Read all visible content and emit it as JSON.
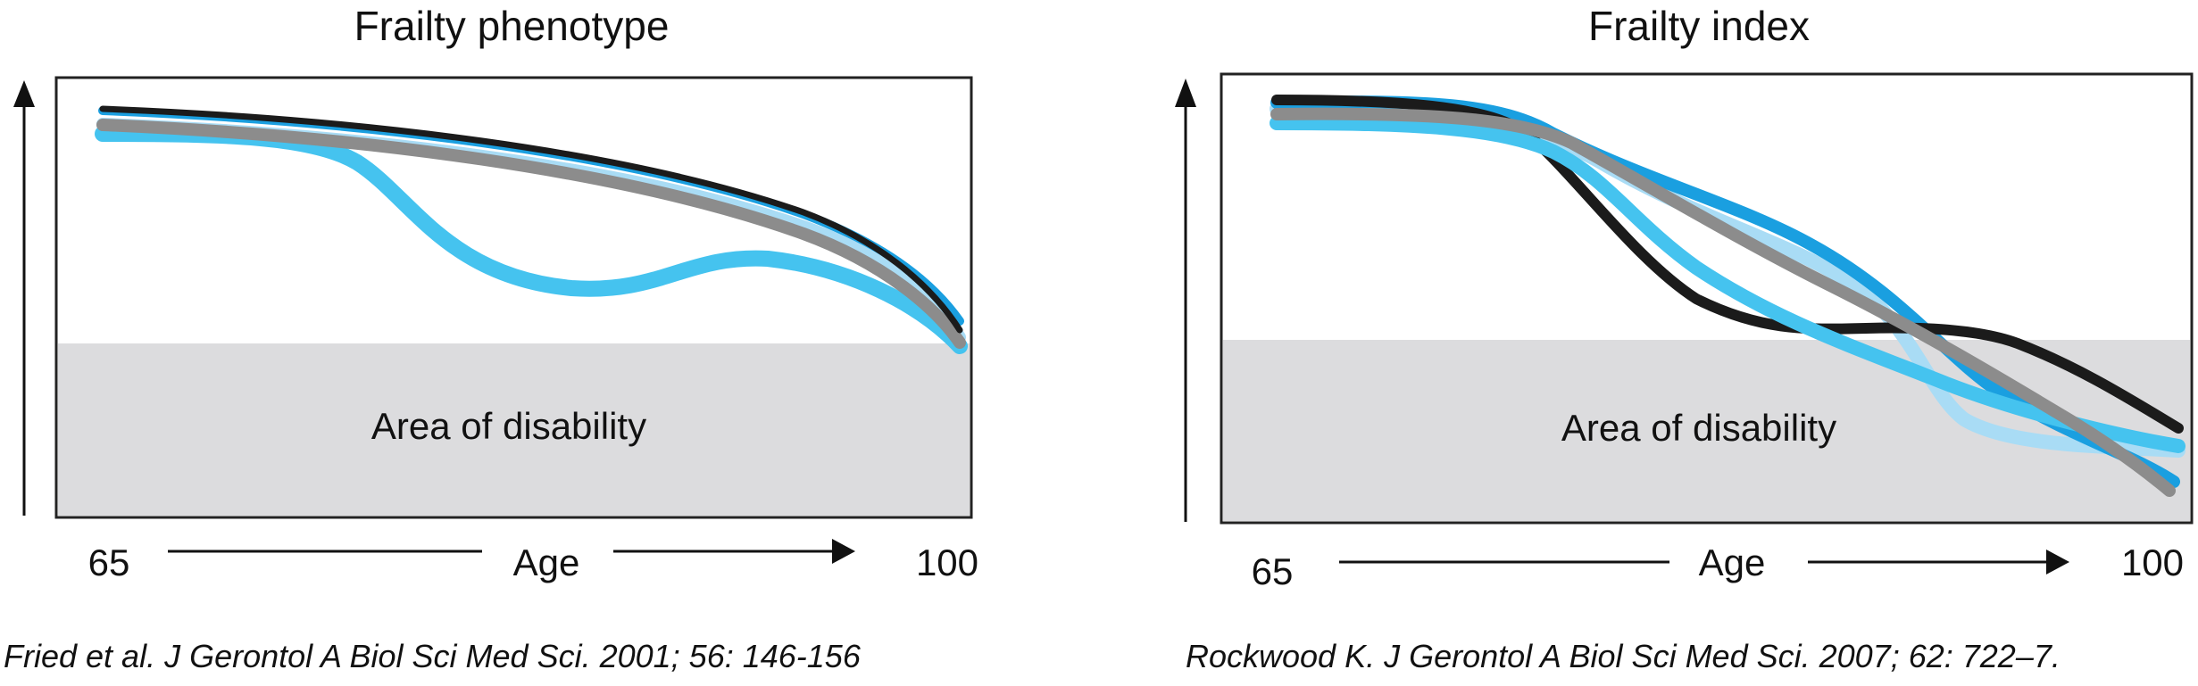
{
  "left_panel": {
    "title": "Frailty phenotype",
    "area_label": "Area of disability",
    "x_start_label": "65",
    "x_axis_label": "Age",
    "x_end_label": "100",
    "citation": "Fried et al. J Gerontol A Biol Sci Med Sci. 2001; 56: 146-156"
  },
  "right_panel": {
    "title": "Frailty index",
    "area_label": "Area of disability",
    "x_start_label": "65",
    "x_axis_label": "Age",
    "x_end_label": "100",
    "citation": "Rockwood K. J Gerontol A Biol Sci Med Sci. 2007; 62: 722–7."
  },
  "colors": {
    "black_curve": "#1b1b1b",
    "dark_blue_curve": "#1a9fe0",
    "light_blue_curve": "#a9dcf5",
    "gray_curve": "#8c8c8c",
    "cyan_curve": "#45c3ef",
    "disability_area": "#dcdcde"
  }
}
